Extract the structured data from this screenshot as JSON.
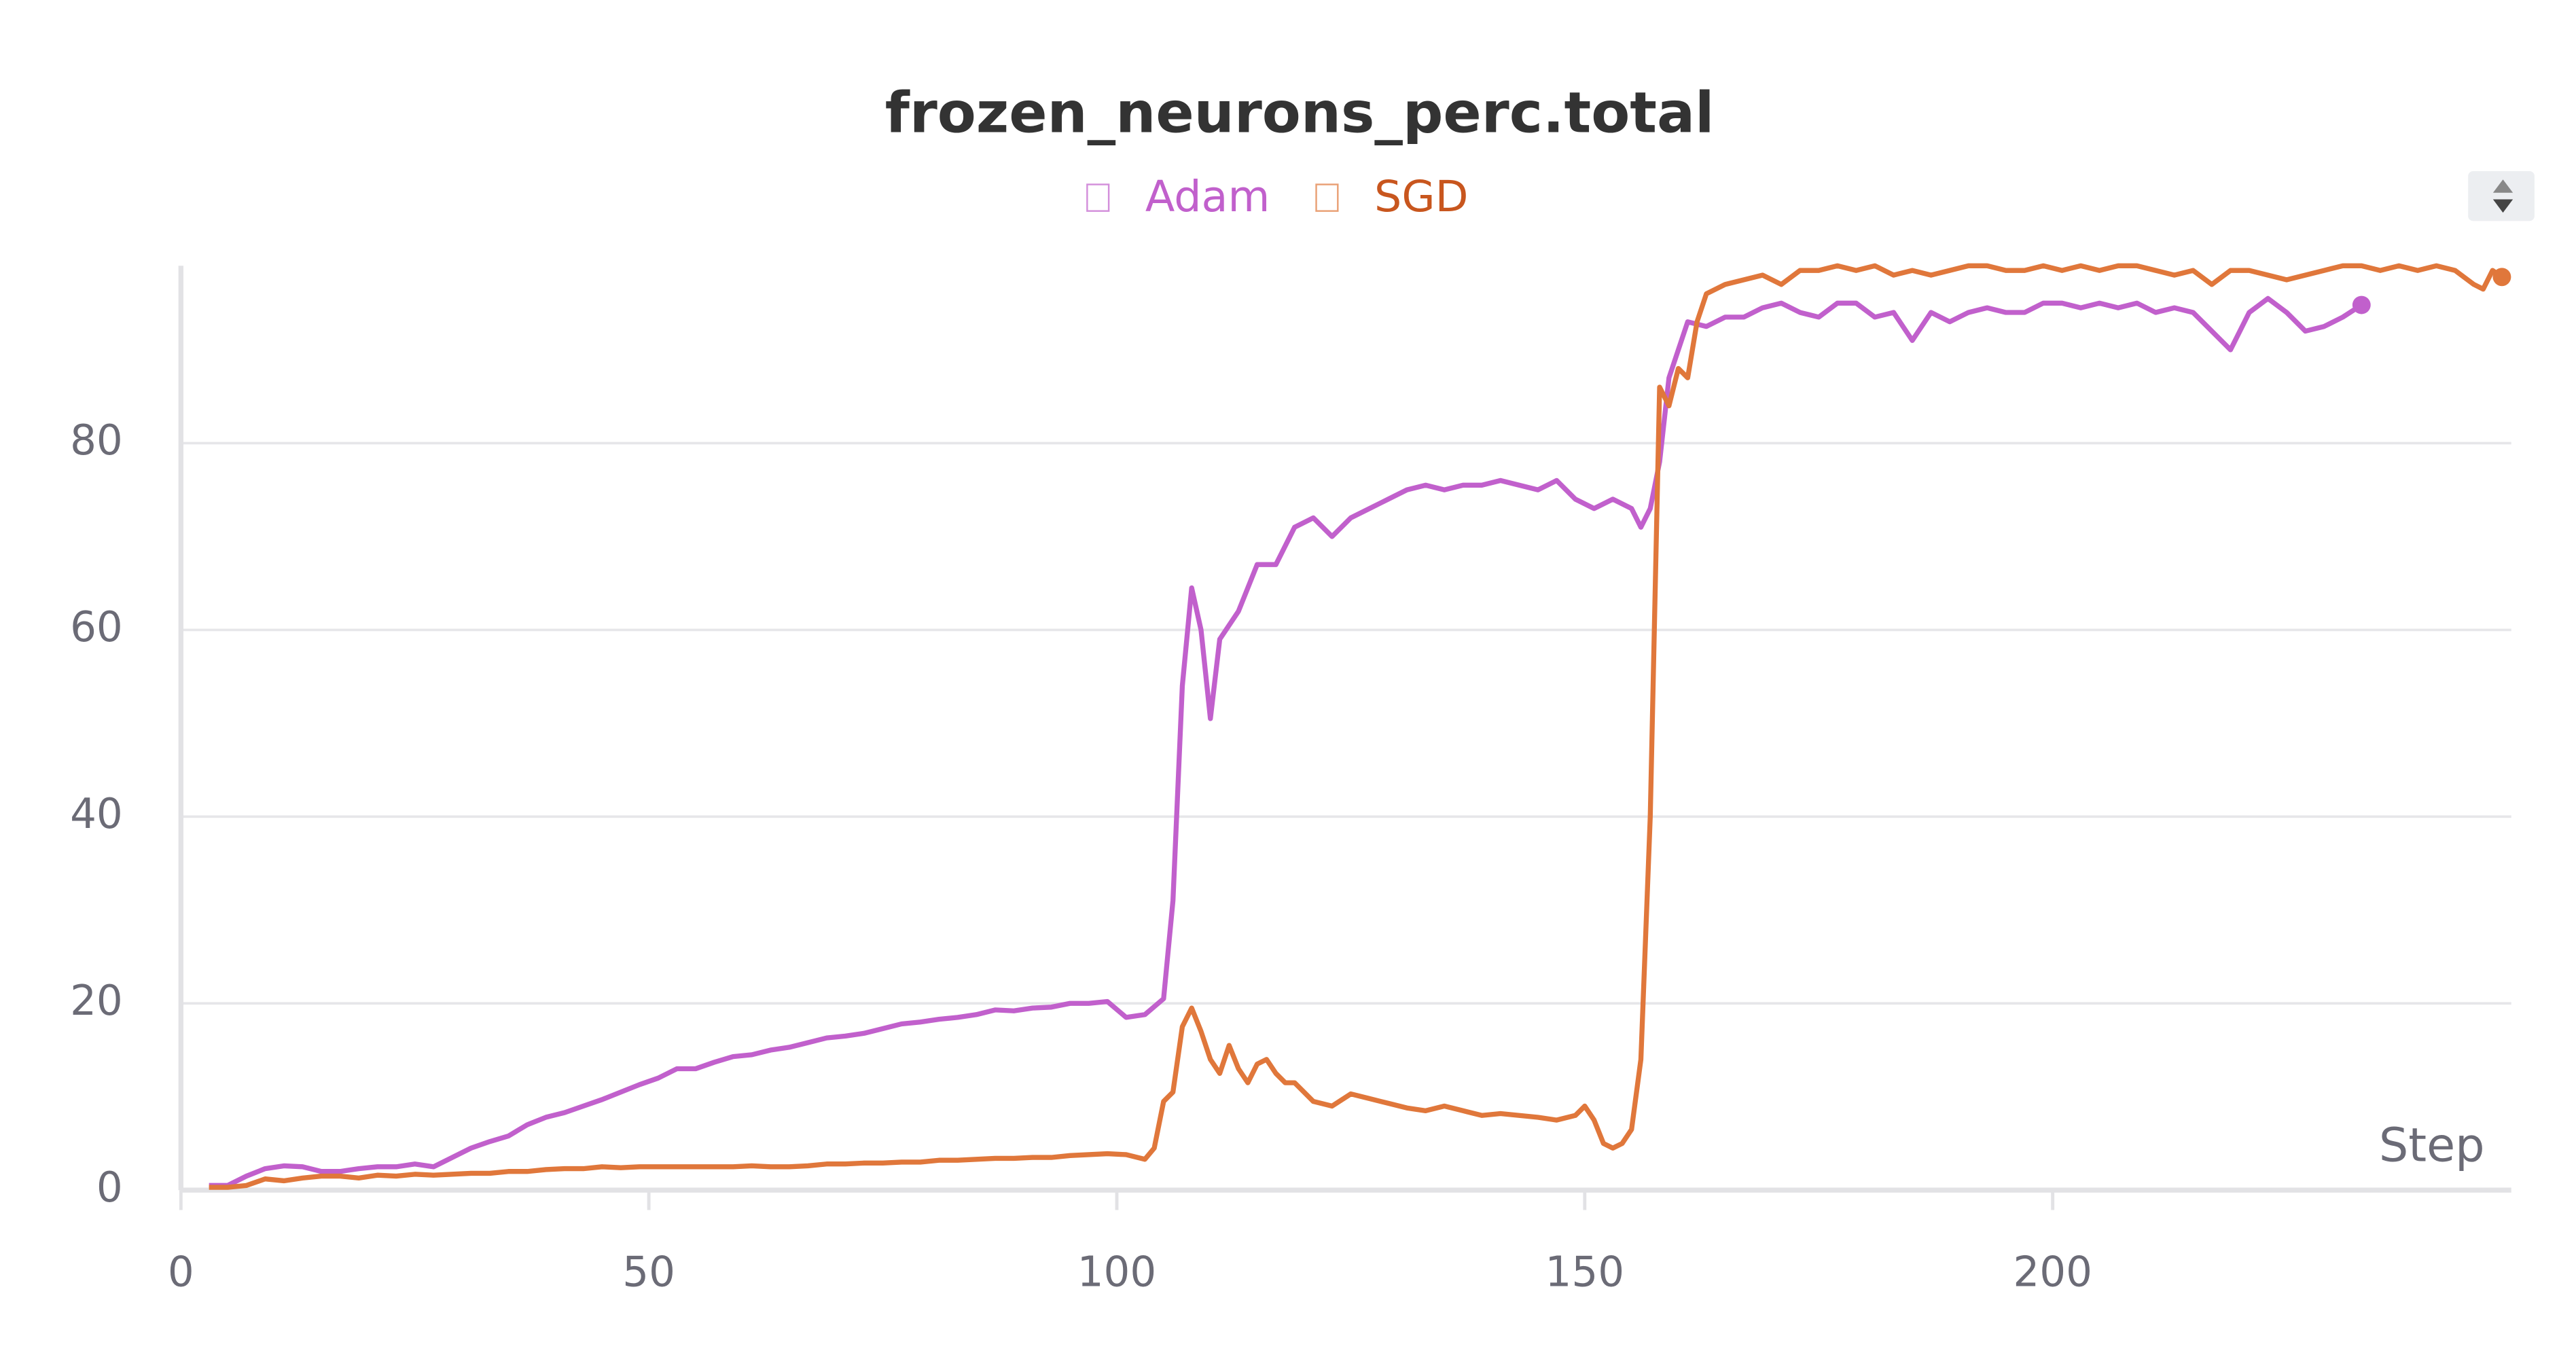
{
  "chart_data": {
    "type": "line",
    "title": "frozen_neurons_perc.total",
    "x_label": "Step",
    "xlim": [
      0,
      249
    ],
    "ylim": [
      0,
      99
    ],
    "xticks": [
      0,
      50,
      100,
      150,
      200
    ],
    "yticks": [
      0,
      20,
      40,
      60,
      80
    ],
    "grid": true,
    "legend": "top",
    "series": [
      {
        "name": "Adam",
        "color": "#c160cc",
        "x": [
          3,
          5,
          7,
          9,
          11,
          13,
          15,
          17,
          19,
          21,
          23,
          25,
          27,
          29,
          31,
          33,
          35,
          37,
          39,
          41,
          43,
          45,
          47,
          49,
          51,
          53,
          55,
          57,
          59,
          61,
          63,
          65,
          67,
          69,
          71,
          73,
          75,
          77,
          79,
          81,
          83,
          85,
          87,
          89,
          91,
          93,
          95,
          97,
          99,
          101,
          103,
          105,
          106,
          107,
          108,
          109,
          110,
          111,
          113,
          115,
          117,
          119,
          121,
          123,
          125,
          127,
          129,
          131,
          133,
          135,
          137,
          139,
          141,
          143,
          145,
          147,
          149,
          151,
          153,
          155,
          156,
          157,
          158,
          159,
          161,
          163,
          165,
          167,
          169,
          171,
          173,
          175,
          177,
          179,
          181,
          183,
          185,
          187,
          189,
          191,
          193,
          195,
          197,
          199,
          201,
          203,
          205,
          207,
          209,
          211,
          213,
          215,
          217,
          219,
          221,
          223,
          225,
          227,
          229,
          231,
          233
        ],
        "values": [
          0.5,
          0.5,
          1.5,
          2.3,
          2.6,
          2.5,
          2,
          2,
          2.3,
          2.5,
          2.5,
          2.8,
          2.5,
          3.5,
          4.5,
          5.2,
          5.8,
          7,
          7.8,
          8.3,
          9,
          9.7,
          10.5,
          11.3,
          12,
          13,
          13,
          13.7,
          14.3,
          14.5,
          15,
          15.3,
          15.8,
          16.3,
          16.5,
          16.8,
          17.3,
          17.8,
          18,
          18.3,
          18.5,
          18.8,
          19.3,
          19.2,
          19.5,
          19.6,
          20,
          20,
          20.2,
          18.5,
          18.8,
          20.5,
          31,
          54,
          64.5,
          60,
          50.5,
          59,
          62,
          67,
          67,
          71,
          72,
          70,
          72,
          73,
          74,
          75,
          75.5,
          75,
          75.5,
          75.5,
          76,
          75.5,
          75,
          76,
          74,
          73,
          74,
          73,
          71,
          73,
          78,
          87,
          93,
          92.5,
          93.5,
          93.5,
          94.5,
          95,
          94,
          93.5,
          95,
          95,
          93.5,
          94,
          91,
          94,
          93,
          94,
          94.5,
          94,
          94,
          95,
          95,
          94.5,
          95,
          94.5,
          95,
          94,
          94.5,
          94,
          92,
          90,
          94,
          95.5,
          94,
          92,
          92.5,
          93.5,
          94.8
        ]
      },
      {
        "name": "SGD",
        "color": "#e0773b",
        "x": [
          3,
          5,
          7,
          9,
          11,
          13,
          15,
          17,
          19,
          21,
          23,
          25,
          27,
          29,
          31,
          33,
          35,
          37,
          39,
          41,
          43,
          45,
          47,
          49,
          51,
          53,
          55,
          57,
          59,
          61,
          63,
          65,
          67,
          69,
          71,
          73,
          75,
          77,
          79,
          81,
          83,
          85,
          87,
          89,
          91,
          93,
          95,
          97,
          99,
          101,
          103,
          104,
          105,
          106,
          107,
          108,
          109,
          110,
          111,
          112,
          113,
          114,
          115,
          116,
          117,
          118,
          119,
          121,
          123,
          125,
          127,
          129,
          131,
          133,
          135,
          137,
          139,
          141,
          143,
          145,
          147,
          149,
          150,
          151,
          152,
          153,
          154,
          155,
          156,
          157,
          158,
          159,
          160,
          161,
          162,
          163,
          165,
          167,
          169,
          171,
          173,
          175,
          177,
          179,
          181,
          183,
          185,
          187,
          189,
          191,
          193,
          195,
          197,
          199,
          201,
          203,
          205,
          207,
          209,
          211,
          213,
          215,
          217,
          219,
          221,
          223,
          225,
          227,
          229,
          231,
          233,
          235,
          237,
          239,
          241,
          243,
          245,
          246,
          247,
          248
        ],
        "values": [
          0.3,
          0.3,
          0.5,
          1.2,
          1,
          1.3,
          1.5,
          1.5,
          1.3,
          1.6,
          1.5,
          1.7,
          1.6,
          1.7,
          1.8,
          1.8,
          2,
          2,
          2.2,
          2.3,
          2.3,
          2.5,
          2.4,
          2.5,
          2.5,
          2.5,
          2.5,
          2.5,
          2.5,
          2.6,
          2.5,
          2.5,
          2.6,
          2.8,
          2.8,
          2.9,
          2.9,
          3,
          3,
          3.2,
          3.2,
          3.3,
          3.4,
          3.4,
          3.5,
          3.5,
          3.7,
          3.8,
          3.9,
          3.8,
          3.3,
          4.5,
          9.5,
          10.5,
          17.5,
          19.5,
          17,
          14,
          12.5,
          15.5,
          13,
          11.5,
          13.5,
          14,
          12.5,
          11.5,
          11.5,
          9.5,
          9,
          10.3,
          9.8,
          9.3,
          8.8,
          8.5,
          9,
          8.5,
          8,
          8.2,
          8,
          7.8,
          7.5,
          8,
          9,
          7.5,
          5,
          4.5,
          5,
          6.5,
          14,
          40,
          86,
          84,
          88,
          87,
          93,
          96,
          97,
          97.5,
          98,
          97,
          98.5,
          98.5,
          99,
          98.5,
          99,
          98,
          98.5,
          98,
          98.5,
          99,
          99,
          98.5,
          98.5,
          99,
          98.5,
          99,
          98.5,
          99,
          99,
          98.5,
          98,
          98.5,
          97,
          98.5,
          98.5,
          98,
          97.5,
          98,
          98.5,
          99,
          99,
          98.5,
          99,
          98.5,
          99,
          98.5,
          97,
          96.5,
          98.5,
          97.8
        ]
      }
    ]
  }
}
